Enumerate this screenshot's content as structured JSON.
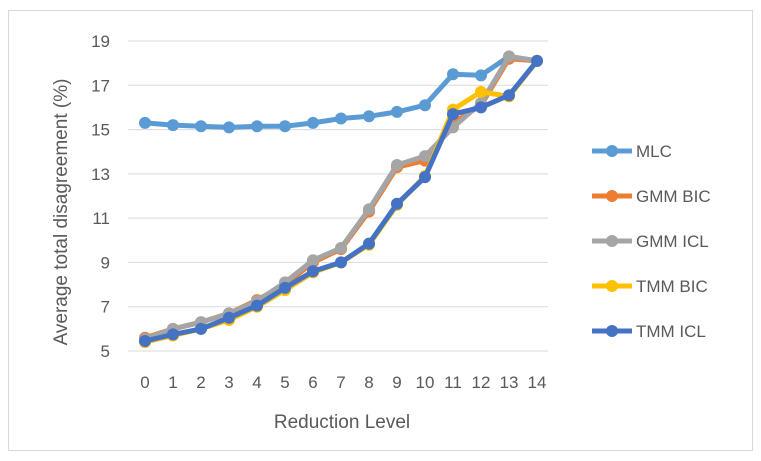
{
  "chart_data": {
    "type": "line",
    "xlabel": "Reduction Level",
    "ylabel": "Average total disagreement (%)",
    "x": [
      0,
      1,
      2,
      3,
      4,
      5,
      6,
      7,
      8,
      9,
      10,
      11,
      12,
      13,
      14
    ],
    "ylim": [
      5,
      19
    ],
    "yticks": [
      5,
      7,
      9,
      11,
      13,
      15,
      17,
      19
    ],
    "grid": "horizontal",
    "legend_position": "right",
    "series": [
      {
        "name": "MLC",
        "color": "#5B9BD5",
        "values": [
          15.3,
          15.2,
          15.15,
          15.1,
          15.15,
          15.15,
          15.3,
          15.5,
          15.6,
          15.8,
          16.1,
          17.5,
          17.45,
          18.3,
          18.1
        ]
      },
      {
        "name": "GMM BIC",
        "color": "#ED7D31",
        "values": [
          5.6,
          6.0,
          6.3,
          6.7,
          7.3,
          8.0,
          9.0,
          9.6,
          11.3,
          13.3,
          13.6,
          15.3,
          16.1,
          18.2,
          18.1
        ]
      },
      {
        "name": "GMM ICL",
        "color": "#A5A5A5",
        "values": [
          5.55,
          6.0,
          6.3,
          6.7,
          7.25,
          8.1,
          9.1,
          9.65,
          11.4,
          13.4,
          13.8,
          15.1,
          16.2,
          18.3,
          18.1
        ]
      },
      {
        "name": "TMM BIC",
        "color": "#FFC000",
        "values": [
          5.4,
          5.7,
          6.0,
          6.4,
          7.0,
          7.75,
          8.55,
          9.0,
          9.8,
          11.6,
          12.9,
          15.9,
          16.7,
          16.5,
          18.1
        ]
      },
      {
        "name": "TMM ICL",
        "color": "#4472C4",
        "values": [
          5.45,
          5.75,
          6.0,
          6.5,
          7.05,
          7.85,
          8.6,
          9.0,
          9.85,
          11.65,
          12.85,
          15.7,
          16.0,
          16.55,
          18.1
        ]
      }
    ]
  }
}
